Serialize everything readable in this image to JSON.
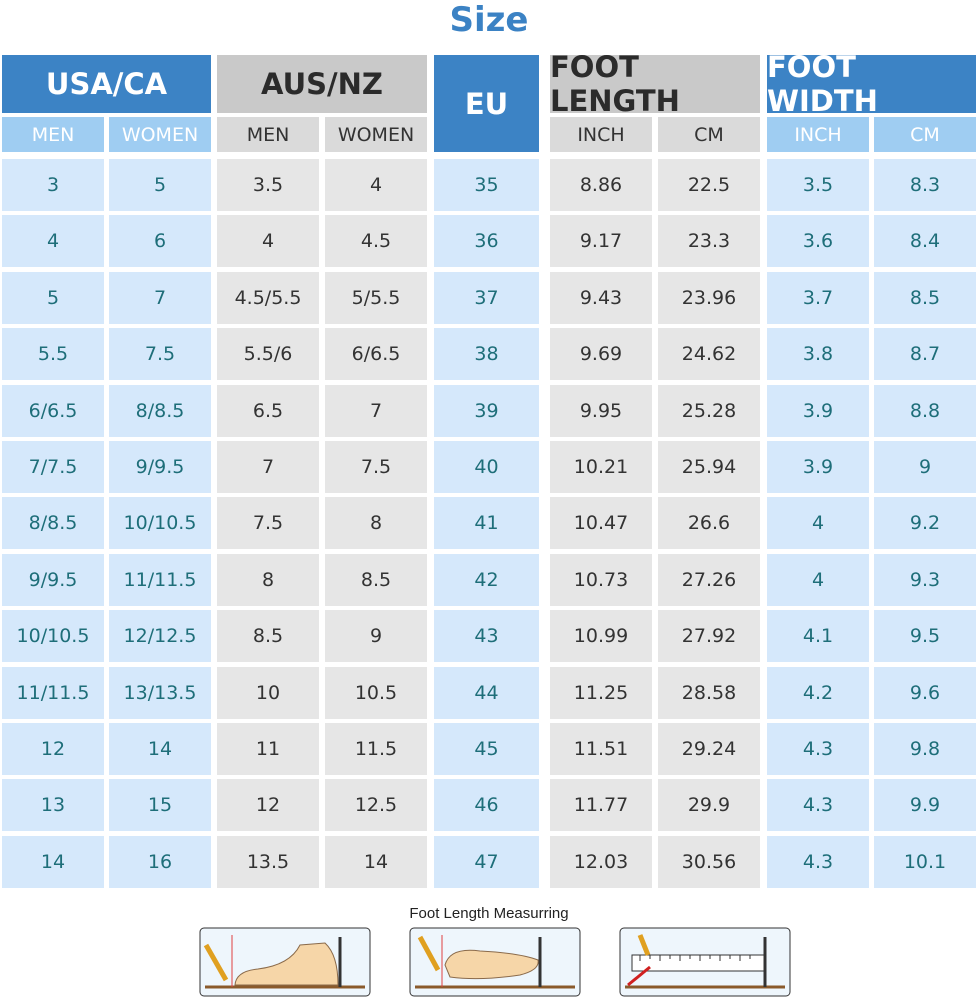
{
  "title": "Size",
  "groups": [
    {
      "label": "USA/CA",
      "columns": [
        "MEN",
        "WOMEN"
      ]
    },
    {
      "label": "AUS/NZ",
      "columns": [
        "MEN",
        "WOMEN"
      ]
    },
    {
      "label": "EU",
      "columns": []
    },
    {
      "label": "FOOT LENGTH",
      "columns": [
        "INCH",
        "CM"
      ]
    },
    {
      "label": "FOOT WIDTH",
      "columns": [
        "INCH",
        "CM"
      ]
    }
  ],
  "rows": [
    [
      "3",
      "5",
      "3.5",
      "4",
      "35",
      "8.86",
      "22.5",
      "3.5",
      "8.3"
    ],
    [
      "4",
      "6",
      "4",
      "4.5",
      "36",
      "9.17",
      "23.3",
      "3.6",
      "8.4"
    ],
    [
      "5",
      "7",
      "4.5/5.5",
      "5/5.5",
      "37",
      "9.43",
      "23.96",
      "3.7",
      "8.5"
    ],
    [
      "5.5",
      "7.5",
      "5.5/6",
      "6/6.5",
      "38",
      "9.69",
      "24.62",
      "3.8",
      "8.7"
    ],
    [
      "6/6.5",
      "8/8.5",
      "6.5",
      "7",
      "39",
      "9.95",
      "25.28",
      "3.9",
      "8.8"
    ],
    [
      "7/7.5",
      "9/9.5",
      "7",
      "7.5",
      "40",
      "10.21",
      "25.94",
      "3.9",
      "9"
    ],
    [
      "8/8.5",
      "10/10.5",
      "7.5",
      "8",
      "41",
      "10.47",
      "26.6",
      "4",
      "9.2"
    ],
    [
      "9/9.5",
      "11/11.5",
      "8",
      "8.5",
      "42",
      "10.73",
      "27.26",
      "4",
      "9.3"
    ],
    [
      "10/10.5",
      "12/12.5",
      "8.5",
      "9",
      "43",
      "10.99",
      "27.92",
      "4.1",
      "9.5"
    ],
    [
      "11/11.5",
      "13/13.5",
      "10",
      "10.5",
      "44",
      "11.25",
      "28.58",
      "4.2",
      "9.6"
    ],
    [
      "12",
      "14",
      "11",
      "11.5",
      "45",
      "11.51",
      "29.24",
      "4.3",
      "9.8"
    ],
    [
      "13",
      "15",
      "12",
      "12.5",
      "46",
      "11.77",
      "29.9",
      "4.3",
      "9.9"
    ],
    [
      "14",
      "16",
      "13.5",
      "14",
      "47",
      "12.03",
      "30.56",
      "4.3",
      "10.1"
    ]
  ],
  "caption": "Foot Length Measurring"
}
